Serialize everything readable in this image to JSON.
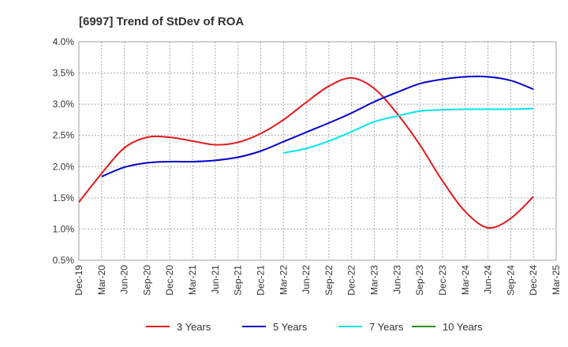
{
  "chart_data": {
    "type": "line",
    "title": "[6997]  Trend of StDev of ROA",
    "xlabel": "",
    "ylabel": "",
    "ylim": [
      0.5,
      4.0
    ],
    "yticks": [
      "4.0%",
      "3.5%",
      "3.0%",
      "2.5%",
      "2.0%",
      "1.5%",
      "1.0%",
      "0.5%"
    ],
    "categories": [
      "Dec-19",
      "Mar-20",
      "Jun-20",
      "Sep-20",
      "Dec-20",
      "Mar-21",
      "Jun-21",
      "Sep-21",
      "Dec-21",
      "Mar-22",
      "Jun-22",
      "Sep-22",
      "Dec-22",
      "Mar-23",
      "Jun-23",
      "Sep-23",
      "Dec-23",
      "Mar-24",
      "Jun-24",
      "Sep-24",
      "Dec-24",
      "Mar-25"
    ],
    "grid": true,
    "legend_position": "bottom",
    "series": [
      {
        "name": "3 Years",
        "color": "#e31a1c",
        "values": [
          1.43,
          1.89,
          2.3,
          2.47,
          2.47,
          2.41,
          2.35,
          2.39,
          2.53,
          2.75,
          3.03,
          3.29,
          3.42,
          3.25,
          2.85,
          2.35,
          1.77,
          1.28,
          1.02,
          1.17,
          1.52,
          null
        ]
      },
      {
        "name": "5 Years",
        "color": "#0000cc",
        "values": [
          null,
          1.84,
          1.99,
          2.06,
          2.08,
          2.08,
          2.1,
          2.15,
          2.25,
          2.4,
          2.55,
          2.7,
          2.86,
          3.04,
          3.19,
          3.33,
          3.4,
          3.44,
          3.44,
          3.38,
          3.24,
          null
        ]
      },
      {
        "name": "7 Years",
        "color": "#00e5ee",
        "values": [
          null,
          null,
          null,
          null,
          null,
          null,
          null,
          null,
          null,
          2.22,
          2.29,
          2.41,
          2.56,
          2.72,
          2.81,
          2.89,
          2.91,
          2.92,
          2.92,
          2.92,
          2.93,
          null
        ]
      },
      {
        "name": "10 Years",
        "color": "#228b22",
        "values": [
          null,
          null,
          null,
          null,
          null,
          null,
          null,
          null,
          null,
          null,
          null,
          null,
          null,
          null,
          null,
          null,
          null,
          null,
          null,
          null,
          null,
          null
        ]
      }
    ]
  }
}
